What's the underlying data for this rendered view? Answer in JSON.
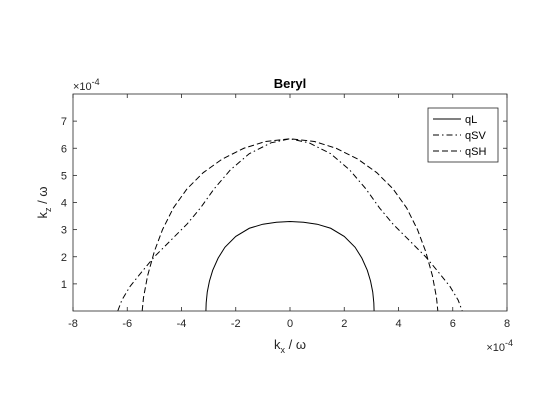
{
  "chart_data": {
    "type": "line",
    "title": "Beryl",
    "xlabel": {
      "main": "k",
      "sub": "x",
      "rest": " / ω"
    },
    "ylabel": {
      "main": "k",
      "sub": "z",
      "rest": " / ω"
    },
    "xlim": [
      -8,
      8
    ],
    "ylim": [
      0,
      8
    ],
    "xticks": [
      "-8",
      "-6",
      "-4",
      "-2",
      "0",
      "2",
      "4",
      "6",
      "8"
    ],
    "yticks": [
      "1",
      "2",
      "3",
      "4",
      "5",
      "6",
      "7"
    ],
    "x_exponent": {
      "base": "×10",
      "power": "-4"
    },
    "y_exponent": {
      "base": "×10",
      "power": "-4"
    },
    "grid": false,
    "legend_position": "top-right",
    "series": [
      {
        "name": "qL",
        "style": "solid",
        "points": [
          [
            -3.1,
            0
          ],
          [
            -3.09,
            0.3
          ],
          [
            -3.05,
            0.7
          ],
          [
            -2.97,
            1.1
          ],
          [
            -2.85,
            1.5
          ],
          [
            -2.65,
            1.95
          ],
          [
            -2.4,
            2.35
          ],
          [
            -2.0,
            2.75
          ],
          [
            -1.5,
            3.05
          ],
          [
            -1.0,
            3.2
          ],
          [
            -0.5,
            3.27
          ],
          [
            0,
            3.3
          ],
          [
            0.5,
            3.27
          ],
          [
            1.0,
            3.2
          ],
          [
            1.5,
            3.05
          ],
          [
            2.0,
            2.75
          ],
          [
            2.4,
            2.35
          ],
          [
            2.65,
            1.95
          ],
          [
            2.85,
            1.5
          ],
          [
            2.97,
            1.1
          ],
          [
            3.05,
            0.7
          ],
          [
            3.09,
            0.3
          ],
          [
            3.1,
            0
          ]
        ]
      },
      {
        "name": "qSV",
        "style": "dashdot",
        "points": [
          [
            -6.35,
            0
          ],
          [
            -6.2,
            0.4
          ],
          [
            -5.9,
            0.9
          ],
          [
            -5.5,
            1.4
          ],
          [
            -5.0,
            2.0
          ],
          [
            -4.4,
            2.6
          ],
          [
            -3.8,
            3.2
          ],
          [
            -3.3,
            3.8
          ],
          [
            -2.8,
            4.5
          ],
          [
            -2.2,
            5.2
          ],
          [
            -1.5,
            5.8
          ],
          [
            -0.7,
            6.2
          ],
          [
            0,
            6.35
          ],
          [
            0.7,
            6.2
          ],
          [
            1.5,
            5.8
          ],
          [
            2.2,
            5.2
          ],
          [
            2.8,
            4.5
          ],
          [
            3.3,
            3.8
          ],
          [
            3.8,
            3.2
          ],
          [
            4.4,
            2.6
          ],
          [
            5.0,
            2.0
          ],
          [
            5.5,
            1.4
          ],
          [
            5.9,
            0.9
          ],
          [
            6.2,
            0.4
          ],
          [
            6.35,
            0
          ]
        ]
      },
      {
        "name": "qSH",
        "style": "dashed",
        "points": [
          [
            -5.45,
            0
          ],
          [
            -5.4,
            0.5
          ],
          [
            -5.25,
            1.3
          ],
          [
            -5.0,
            2.2
          ],
          [
            -4.7,
            3.0
          ],
          [
            -4.3,
            3.8
          ],
          [
            -3.8,
            4.5
          ],
          [
            -3.2,
            5.1
          ],
          [
            -2.5,
            5.6
          ],
          [
            -1.7,
            6.0
          ],
          [
            -0.9,
            6.25
          ],
          [
            0,
            6.35
          ],
          [
            0.9,
            6.25
          ],
          [
            1.7,
            6.0
          ],
          [
            2.5,
            5.6
          ],
          [
            3.2,
            5.1
          ],
          [
            3.8,
            4.5
          ],
          [
            4.3,
            3.8
          ],
          [
            4.7,
            3.0
          ],
          [
            5.0,
            2.2
          ],
          [
            5.25,
            1.3
          ],
          [
            5.4,
            0.5
          ],
          [
            5.45,
            0
          ]
        ]
      }
    ]
  }
}
